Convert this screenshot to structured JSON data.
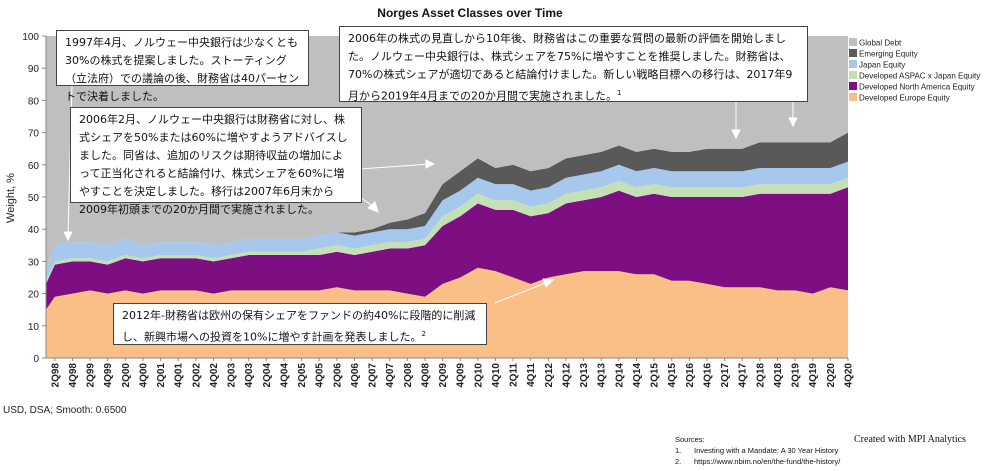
{
  "chart_data": {
    "type": "area",
    "stacked": true,
    "title": "Norges Asset Classes over Time",
    "ylabel": "Weight, %",
    "xlabel": "",
    "ylim": [
      0,
      100
    ],
    "yticks": [
      0,
      10,
      20,
      30,
      40,
      50,
      60,
      70,
      80,
      90,
      100
    ],
    "x_tick_labels": [
      "2Q98",
      "4Q98",
      "2Q99",
      "4Q99",
      "2Q00",
      "4Q00",
      "2Q01",
      "4Q01",
      "2Q02",
      "4Q02",
      "2Q03",
      "4Q03",
      "2Q04",
      "4Q04",
      "2Q05",
      "4Q05",
      "2Q06",
      "4Q06",
      "2Q07",
      "4Q07",
      "2Q08",
      "4Q08",
      "2Q09",
      "4Q09",
      "2Q10",
      "4Q10",
      "2Q11",
      "4Q11",
      "2Q12",
      "4Q12",
      "2Q13",
      "4Q13",
      "2Q14",
      "4Q14",
      "2Q15",
      "4Q15",
      "2Q16",
      "4Q16",
      "2Q17",
      "4Q17",
      "2Q18",
      "4Q18",
      "2Q19",
      "4Q19",
      "2Q20",
      "4Q20"
    ],
    "x": [
      "1Q98",
      "2Q98",
      "4Q98",
      "2Q99",
      "4Q99",
      "2Q00",
      "4Q00",
      "2Q01",
      "4Q01",
      "2Q02",
      "4Q02",
      "2Q03",
      "4Q03",
      "2Q04",
      "4Q04",
      "2Q05",
      "4Q05",
      "2Q06",
      "4Q06",
      "2Q07",
      "4Q07",
      "2Q08",
      "4Q08",
      "2Q09",
      "4Q09",
      "2Q10",
      "4Q10",
      "2Q11",
      "4Q11",
      "2Q12",
      "4Q12",
      "2Q13",
      "4Q13",
      "2Q14",
      "4Q14",
      "2Q15",
      "4Q15",
      "2Q16",
      "4Q16",
      "2Q17",
      "4Q17",
      "2Q18",
      "4Q18",
      "2Q19",
      "4Q19",
      "2Q20",
      "4Q20"
    ],
    "legend_position": "right",
    "series": [
      {
        "name": "Developed Europe Equity",
        "color": "#f9bf86",
        "values": [
          15,
          19,
          20,
          21,
          20,
          21,
          20,
          21,
          21,
          21,
          20,
          21,
          21,
          21,
          21,
          21,
          21,
          22,
          21,
          21,
          21,
          20,
          19,
          23,
          25,
          28,
          27,
          25,
          23,
          25,
          26,
          27,
          27,
          27,
          26,
          26,
          24,
          24,
          23,
          22,
          22,
          22,
          21,
          21,
          20,
          22,
          21
        ]
      },
      {
        "name": "Developed North America Equity",
        "color": "#7e0f83",
        "values": [
          8,
          10,
          10,
          9,
          9,
          10,
          10,
          10,
          10,
          10,
          10,
          10,
          11,
          11,
          11,
          11,
          11,
          11,
          11,
          12,
          13,
          14,
          16,
          18,
          19,
          20,
          19,
          21,
          21,
          20,
          22,
          22,
          23,
          25,
          24,
          25,
          26,
          26,
          27,
          28,
          28,
          29,
          30,
          30,
          31,
          29,
          32
        ]
      },
      {
        "name": "Developed ASPAC x Japan Equity",
        "color": "#c4e0b4",
        "values": [
          1,
          1,
          1,
          1,
          1,
          1,
          1,
          1,
          1,
          1,
          1,
          1,
          1,
          1,
          1,
          1,
          2,
          2,
          2,
          2,
          2,
          2,
          2,
          3,
          3,
          3,
          3,
          3,
          3,
          3,
          3,
          3,
          3,
          3,
          3,
          3,
          3,
          3,
          3,
          3,
          3,
          3,
          3,
          3,
          3,
          3,
          3
        ]
      },
      {
        "name": "Japan Equity",
        "color": "#a6c8ed",
        "values": [
          3,
          5,
          5,
          5,
          5,
          5,
          4,
          4,
          4,
          4,
          4,
          4,
          4,
          4,
          4,
          4,
          4,
          4,
          4,
          4,
          4,
          4,
          4,
          5,
          5,
          5,
          5,
          5,
          5,
          5,
          5,
          5,
          5,
          5,
          5,
          5,
          5,
          5,
          5,
          5,
          5,
          5,
          5,
          5,
          5,
          5,
          5
        ]
      },
      {
        "name": "Emerging Equity",
        "color": "#595959",
        "values": [
          0,
          0,
          0,
          0,
          0,
          0,
          0,
          0,
          0,
          0,
          0,
          0,
          0,
          0,
          0,
          0,
          0,
          0,
          1,
          1,
          2,
          3,
          4,
          5,
          6,
          6,
          5,
          6,
          6,
          6,
          6,
          6,
          6,
          6,
          6,
          6,
          6,
          6,
          7,
          7,
          7,
          8,
          8,
          8,
          8,
          8,
          9
        ]
      },
      {
        "name": "Global Debt",
        "color": "#bfbfbf",
        "values": [
          73,
          65,
          64,
          64,
          65,
          63,
          65,
          64,
          64,
          64,
          65,
          64,
          63,
          63,
          63,
          63,
          62,
          61,
          61,
          60,
          58,
          57,
          55,
          46,
          42,
          38,
          41,
          40,
          42,
          41,
          38,
          37,
          36,
          34,
          36,
          35,
          36,
          36,
          35,
          35,
          35,
          33,
          33,
          33,
          33,
          33,
          30
        ]
      }
    ],
    "annotations": [
      {
        "id": "1997",
        "text": "1997年4月、ノルウェー中央銀行は少なくとも30%の株式を提案しました。ストーティング（立法府）での議論の後、財務省は40パーセントで決着しました。"
      },
      {
        "id": "2006b",
        "text": "2006年の株式の見直しから10年後、財務省はこの重要な質問の最新の評価を開始しました。ノルウェー中央銀行は、株式シェアを75%に増やすことを推奨しました。財務省は、70%の株式シェアが適切であると結論付けました。新しい戦略目標への移行は、2017年9月から2019年4月までの20か月間で実施されました。",
        "sup": "1"
      },
      {
        "id": "2006a",
        "text": "2006年2月、ノルウェー中央銀行は財務省に対し、株式シェアを50%または60%に増やすようアドバイスしました。同省は、追加のリスクは期待収益の増加によって正当化されると結論付け、株式シェアを60%に増やすことを決定しました。移行は2007年6月末から2009年初頭までの20か月間で実施されました。"
      },
      {
        "id": "2012",
        "text": "2012年-財務省は欧州の保有シェアをファンドの約40%に段階的に削減し、新興市場への投資を10%に増やす計画を発表しました。",
        "sup": "2"
      }
    ]
  },
  "footer": {
    "note": "USD, DSA; Smooth: 0.6500",
    "credit": "Created with MPI Analytics",
    "sources_title": "Sources:",
    "sources": [
      "Investing with a Mandate: A 30 Year History",
      "https://www.nbim.no/en/the-fund/the-history/"
    ],
    "source_nums": [
      "1.",
      "2."
    ]
  }
}
